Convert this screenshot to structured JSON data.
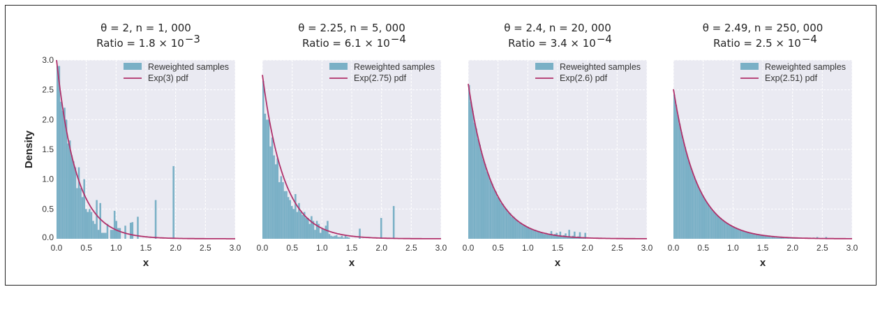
{
  "chart_data": [
    {
      "type": "bar",
      "title_line1": "θ = 2, n = 1, 000",
      "title_line2": "Ratio = 1.8 × 10",
      "title_exp": "−3",
      "xlabel": "x",
      "ylabel": "Density",
      "xlim": [
        0,
        3
      ],
      "ylim": [
        0,
        3
      ],
      "xticks": [
        "0.0",
        "0.5",
        "1.0",
        "1.5",
        "2.0",
        "2.5",
        "3.0"
      ],
      "yticks": [
        "0.0",
        "0.5",
        "1.0",
        "1.5",
        "2.0",
        "2.5",
        "3.0"
      ],
      "grid": true,
      "legend": "top-right",
      "legend_entries": [
        "Reweighted samples",
        "Exp(3) pdf"
      ],
      "pdf_rate": 3,
      "bin_width": 0.03,
      "heights": [
        2.9,
        2.9,
        2.3,
        2.15,
        2.2,
        2.0,
        1.6,
        1.65,
        1.4,
        1.3,
        1.2,
        0.85,
        1.2,
        0.85,
        0.7,
        1.0,
        0.5,
        0.45,
        0.5,
        0.45,
        0.3,
        0.25,
        0.65,
        0.15,
        0.6,
        0.1,
        0.1,
        0.1,
        0.25,
        0,
        0.15,
        0.15,
        0.47,
        0.3,
        0.18,
        0.18,
        0,
        0,
        0.22,
        0,
        0,
        0.27,
        0.28,
        0,
        0,
        0.37,
        0,
        0,
        0,
        0,
        0,
        0,
        0,
        0,
        0,
        0.65,
        0,
        0,
        0,
        0,
        0,
        0,
        0,
        0,
        0,
        1.22
      ]
    },
    {
      "type": "bar",
      "title_line1": "θ = 2.25, n = 5, 000",
      "title_line2": "Ratio = 6.1 × 10",
      "title_exp": "−4",
      "xlabel": "x",
      "ylabel": "",
      "xlim": [
        0,
        3
      ],
      "ylim": [
        0,
        3
      ],
      "xticks": [
        "0.0",
        "0.5",
        "1.0",
        "1.5",
        "2.0",
        "2.5",
        "3.0"
      ],
      "grid": true,
      "legend": "top-right",
      "legend_entries": [
        "Reweighted samples",
        "Exp(2.75) pdf"
      ],
      "pdf_rate": 2.75,
      "bin_width": 0.03,
      "heights": [
        2.65,
        2.1,
        2.0,
        2.0,
        1.55,
        1.7,
        1.4,
        1.25,
        1.35,
        0.95,
        1.05,
        0.95,
        0.8,
        0.8,
        0.7,
        0.65,
        0.55,
        0.5,
        0.75,
        0.45,
        0.6,
        0.45,
        0.4,
        0.45,
        0.35,
        0.35,
        0.25,
        0.38,
        0.3,
        0.15,
        0.3,
        0.25,
        0.1,
        0.18,
        0.15,
        0.22,
        0.3,
        0.08,
        0.05,
        0.04,
        0.05,
        0.06,
        0.03,
        0.03,
        0.05,
        0.02,
        0.05,
        0.03,
        0.02,
        0,
        0,
        0,
        0,
        0,
        0.17,
        0,
        0,
        0,
        0,
        0,
        0,
        0,
        0,
        0,
        0,
        0,
        0.35,
        0,
        0,
        0,
        0,
        0,
        0,
        0.55
      ]
    },
    {
      "type": "bar",
      "title_line1": "θ = 2.4, n = 20, 000",
      "title_line2": "Ratio = 3.4 × 10",
      "title_exp": "−4",
      "xlabel": "x",
      "ylabel": "",
      "xlim": [
        0,
        3
      ],
      "ylim": [
        0,
        3
      ],
      "xticks": [
        "0.0",
        "0.5",
        "1.0",
        "1.5",
        "2.0",
        "2.5",
        "3.0"
      ],
      "grid": true,
      "legend": "top-right",
      "legend_entries": [
        "Reweighted samples",
        "Exp(2.6) pdf"
      ],
      "pdf_rate": 2.6,
      "bin_width": 0.03,
      "heights": [
        2.58,
        2.3,
        2.15,
        1.95,
        1.85,
        1.68,
        1.58,
        1.44,
        1.33,
        1.25,
        1.13,
        1.07,
        0.97,
        0.92,
        0.83,
        0.79,
        0.7,
        0.67,
        0.6,
        0.58,
        0.52,
        0.5,
        0.44,
        0.43,
        0.37,
        0.37,
        0.32,
        0.31,
        0.27,
        0.27,
        0.23,
        0.23,
        0.2,
        0.2,
        0.17,
        0.17,
        0.14,
        0.15,
        0.12,
        0.13,
        0.1,
        0.11,
        0.08,
        0.1,
        0.07,
        0.08,
        0.13,
        0.06,
        0.08,
        0.1,
        0.05,
        0.12,
        0.04,
        0.06,
        0.09,
        0.03,
        0.15,
        0.03,
        0.05,
        0.12,
        0.02,
        0.04,
        0.11,
        0.02,
        0.03,
        0.1
      ]
    },
    {
      "type": "bar",
      "title_line1": "θ = 2.49, n = 250, 000",
      "title_line2": "Ratio = 2.5 × 10",
      "title_exp": "−4",
      "xlabel": "x",
      "ylabel": "",
      "xlim": [
        0,
        3
      ],
      "ylim": [
        0,
        3
      ],
      "xticks": [
        "0.0",
        "0.5",
        "1.0",
        "1.5",
        "2.0",
        "2.5",
        "3.0"
      ],
      "grid": true,
      "legend": "top-right",
      "legend_entries": [
        "Reweighted samples",
        "Exp(2.51) pdf"
      ],
      "pdf_rate": 2.51,
      "bin_width": 0.03,
      "heights": [
        2.42,
        2.25,
        2.08,
        1.93,
        1.79,
        1.66,
        1.54,
        1.43,
        1.32,
        1.23,
        1.14,
        1.05,
        0.98,
        0.91,
        0.84,
        0.78,
        0.72,
        0.67,
        0.62,
        0.58,
        0.53,
        0.49,
        0.46,
        0.43,
        0.4,
        0.37,
        0.34,
        0.32,
        0.29,
        0.27,
        0.25,
        0.23,
        0.22,
        0.2,
        0.19,
        0.17,
        0.16,
        0.15,
        0.14,
        0.13,
        0.12,
        0.11,
        0.1,
        0.09,
        0.09,
        0.08,
        0.07,
        0.07,
        0.06,
        0.06,
        0.05,
        0.06,
        0.04,
        0.04,
        0.03,
        0.03,
        0.03,
        0.02,
        0.02,
        0.02,
        0.02,
        0.02,
        0.01,
        0.01,
        0.01,
        0.01,
        0.01,
        0.01,
        0.01,
        0.01,
        0.01,
        0.01,
        0.01,
        0.01,
        0.01,
        0.01,
        0.01,
        0.01,
        0.02,
        0.01,
        0.03,
        0,
        0,
        0,
        0,
        0.03
      ]
    }
  ],
  "colors": {
    "plot_bg": "#eaeaf2",
    "bars": "#7ab0c6",
    "pdf_line": "#b0306a",
    "grid": "#ffffff"
  }
}
